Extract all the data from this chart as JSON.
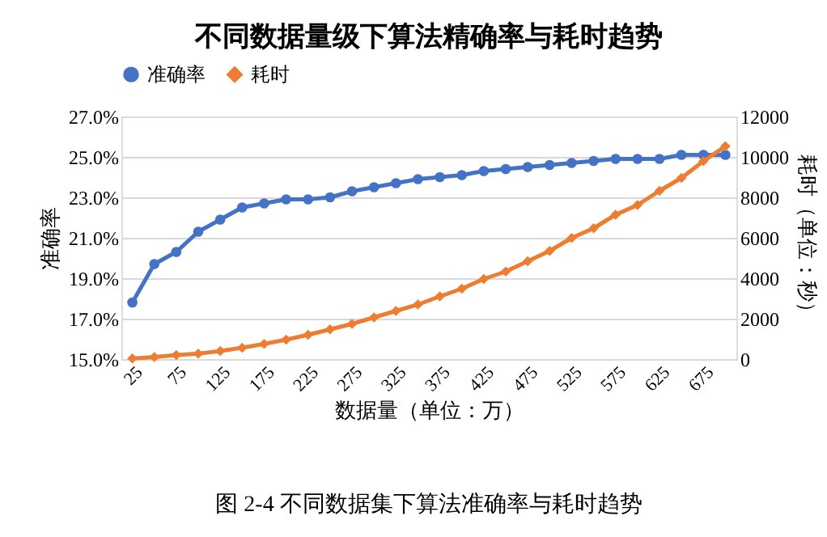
{
  "chart_data": {
    "type": "line",
    "title": "不同数据量级下算法精确率与耗时趋势",
    "xlabel": "数据量（单位：万）",
    "ylabel": "准确率",
    "y2label": "耗时（单位：秒）",
    "categories": [
      "25",
      null,
      "75",
      null,
      "125",
      null,
      "175",
      null,
      "225",
      null,
      "275",
      null,
      "325",
      null,
      "375",
      null,
      "425",
      null,
      "475",
      null,
      "525",
      null,
      "575",
      null,
      "625",
      null,
      "675",
      null
    ],
    "series": [
      {
        "name": "准确率",
        "color": "#4472c4",
        "marker": "circle",
        "values": [
          17.8,
          19.7,
          20.3,
          21.3,
          21.9,
          22.5,
          22.7,
          22.9,
          22.9,
          23.0,
          23.3,
          23.5,
          23.7,
          23.9,
          24.0,
          24.1,
          24.3,
          24.4,
          24.5,
          24.6,
          24.7,
          24.8,
          24.9,
          24.9,
          24.9,
          25.1,
          25.1,
          25.1
        ]
      },
      {
        "name": "耗时",
        "color": "#ed7d31",
        "marker": "diamond",
        "axis": "y2",
        "values": [
          30,
          100,
          200,
          270,
          400,
          560,
          750,
          960,
          1200,
          1470,
          1740,
          2060,
          2380,
          2700,
          3100,
          3480,
          3960,
          4330,
          4840,
          5350,
          5990,
          6470,
          7140,
          7620,
          8320,
          8960,
          9790,
          10530
        ]
      }
    ],
    "ylim": [
      15,
      27
    ],
    "yticks": [
      {
        "value": 15,
        "label": "15.0%"
      },
      {
        "value": 17,
        "label": "17.0%"
      },
      {
        "value": 19,
        "label": "19.0%"
      },
      {
        "value": 21,
        "label": "21.0%"
      },
      {
        "value": 23,
        "label": "23.0%"
      },
      {
        "value": 25,
        "label": "25.0%"
      },
      {
        "value": 27,
        "label": "27.0%"
      }
    ],
    "y2lim": [
      0,
      12000
    ],
    "y2ticks": [
      0,
      2000,
      4000,
      6000,
      8000,
      10000,
      12000
    ],
    "grid": "y",
    "legend": "top",
    "line_style": "solid",
    "annotations": [
      "图 2-4 不同数据集下算法准确率与耗时趋势"
    ]
  }
}
